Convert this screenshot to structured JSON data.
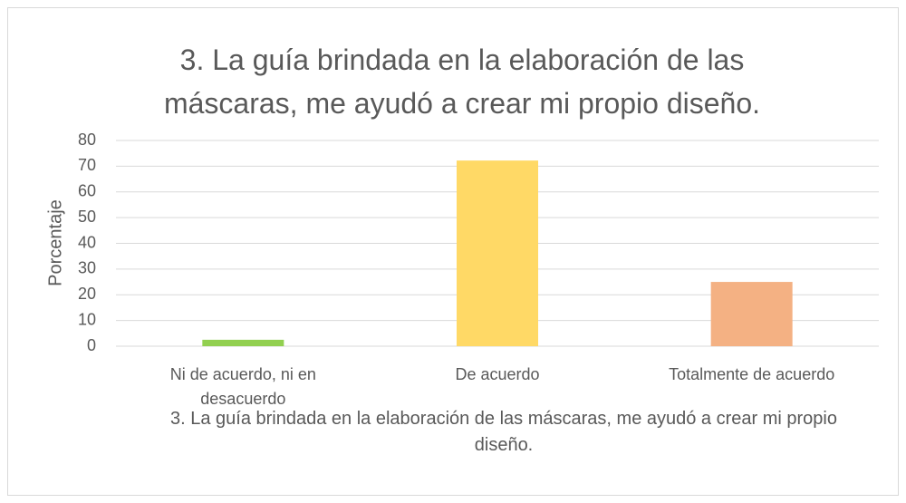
{
  "chart_data": {
    "type": "bar",
    "title": "3. La guía brindada en la elaboración de las máscaras, me ayudó a crear mi propio diseño.",
    "x_label": "3. La guía brindada en la elaboración de las máscaras, me ayudó a crear mi propio diseño.",
    "y_label": "Porcentaje",
    "categories": [
      "Ni de acuerdo, ni en desacuerdo",
      "De acuerdo",
      "Totalmente de acuerdo"
    ],
    "values": [
      2.5,
      72.2,
      25
    ],
    "colors": [
      "#92d050",
      "#ffd966",
      "#f4b183"
    ],
    "ylim": [
      0,
      80
    ],
    "yticks": [
      0,
      10,
      20,
      30,
      40,
      50,
      60,
      70,
      80
    ],
    "grid": true
  }
}
